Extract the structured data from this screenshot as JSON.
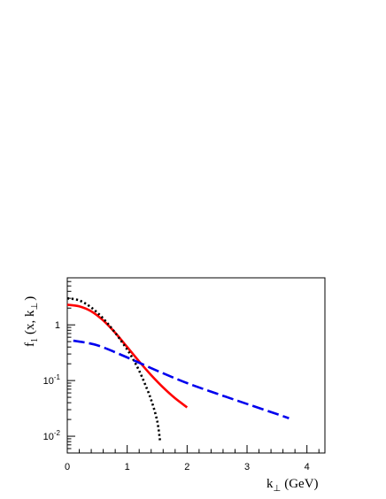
{
  "chart_data": {
    "type": "line",
    "xlabel": {
      "main": "k",
      "sub": "⊥",
      "unit": "(GeV)"
    },
    "ylabel": {
      "main": "f",
      "sub1": "1",
      "args_a": "(x, k",
      "sub2": "⊥",
      "args_b": ")"
    },
    "xlim": [
      0,
      4.3
    ],
    "ylim": [
      0.005,
      7
    ],
    "yscale": "log",
    "grid": false,
    "x_ticks": [
      0,
      1,
      2,
      3,
      4
    ],
    "y_ticks": [
      {
        "value": 0.01,
        "base": "10",
        "exp": "-2"
      },
      {
        "value": 0.1,
        "base": "10",
        "exp": "-1"
      },
      {
        "value": 1,
        "label": "1"
      }
    ],
    "series": [
      {
        "style": "solid",
        "color": "#ff0000",
        "x": [
          0.0,
          0.2,
          0.4,
          0.6,
          0.8,
          1.0,
          1.2,
          1.4,
          1.6,
          1.8,
          2.0
        ],
        "y": [
          2.3,
          2.15,
          1.75,
          1.2,
          0.72,
          0.4,
          0.22,
          0.125,
          0.075,
          0.048,
          0.033
        ]
      },
      {
        "style": "dotted",
        "color": "#000000",
        "x": [
          0.0,
          0.2,
          0.4,
          0.6,
          0.8,
          1.0,
          1.1,
          1.2,
          1.3,
          1.4,
          1.5,
          1.55
        ],
        "y": [
          3.0,
          2.75,
          2.05,
          1.3,
          0.72,
          0.36,
          0.24,
          0.15,
          0.085,
          0.045,
          0.019,
          0.008
        ]
      },
      {
        "style": "dashed",
        "color": "#0000ee",
        "x": [
          0.1,
          0.5,
          1.0,
          1.5,
          2.0,
          2.5,
          3.0,
          3.5,
          3.7
        ],
        "y": [
          0.52,
          0.43,
          0.26,
          0.15,
          0.09,
          0.058,
          0.038,
          0.025,
          0.021
        ]
      }
    ]
  }
}
